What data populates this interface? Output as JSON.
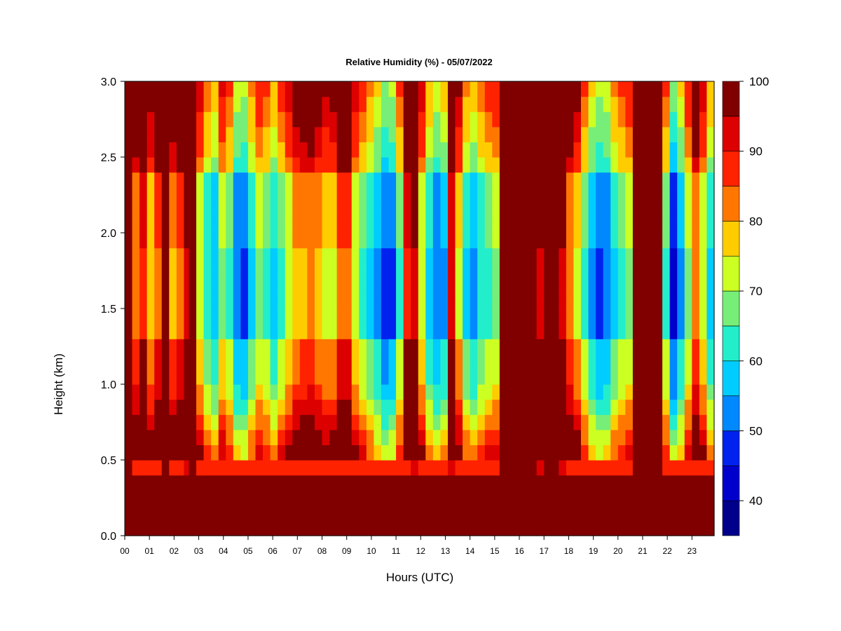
{
  "chart_data": {
    "type": "heatmap",
    "title": "Relative Humidity (%) - 05/07/2022",
    "xlabel": "Hours (UTC)",
    "ylabel": "Height (km)",
    "x_ticks": [
      "00",
      "01",
      "02",
      "03",
      "04",
      "05",
      "06",
      "07",
      "08",
      "09",
      "10",
      "11",
      "12",
      "13",
      "14",
      "15",
      "16",
      "17",
      "18",
      "19",
      "20",
      "21",
      "22",
      "23"
    ],
    "xlim": [
      0,
      23.9
    ],
    "y_ticks": [
      "0.0",
      "0.5",
      "1.0",
      "1.5",
      "2.0",
      "2.5",
      "3.0"
    ],
    "ylim": [
      0,
      3.0
    ],
    "grid": false,
    "colorbar": {
      "ticks": [
        "40",
        "50",
        "60",
        "70",
        "80",
        "90",
        "100"
      ],
      "range": [
        35,
        100
      ],
      "levels": [
        {
          "from": 35,
          "to": 40,
          "color": "#00008b"
        },
        {
          "from": 40,
          "to": 45,
          "color": "#0000cd"
        },
        {
          "from": 45,
          "to": 50,
          "color": "#0022ee"
        },
        {
          "from": 50,
          "to": 55,
          "color": "#0088ff"
        },
        {
          "from": 55,
          "to": 60,
          "color": "#00ccff"
        },
        {
          "from": 60,
          "to": 65,
          "color": "#22eecc"
        },
        {
          "from": 65,
          "to": 70,
          "color": "#77ee77"
        },
        {
          "from": 70,
          "to": 75,
          "color": "#ccff22"
        },
        {
          "from": 75,
          "to": 80,
          "color": "#ffcc00"
        },
        {
          "from": 80,
          "to": 85,
          "color": "#ff7700"
        },
        {
          "from": 85,
          "to": 90,
          "color": "#ff2200"
        },
        {
          "from": 90,
          "to": 95,
          "color": "#dd0000"
        },
        {
          "from": 95,
          "to": 100,
          "color": "#800000"
        }
      ]
    },
    "profiles_note_hours": [
      0.0,
      0.3,
      0.6,
      0.9,
      1.2,
      1.5,
      1.8,
      2.1,
      2.4,
      2.6,
      2.9,
      3.2,
      3.5,
      3.8,
      4.1,
      4.4,
      4.7,
      5.0,
      5.3,
      5.6,
      5.9,
      6.2,
      6.5,
      6.8,
      7.1,
      7.4,
      7.7,
      8.0,
      8.3,
      8.6,
      8.9,
      9.2,
      9.5,
      9.8,
      10.1,
      10.4,
      10.7,
      11.0,
      11.3,
      11.6,
      11.9,
      12.2,
      12.5,
      12.8,
      13.1,
      13.4,
      13.7,
      14.0,
      14.3,
      14.6,
      14.9,
      15.2,
      15.5,
      15.8,
      16.1,
      16.4,
      16.7,
      17.0,
      17.3,
      17.6,
      17.9,
      18.2,
      18.5,
      18.8,
      19.1,
      19.4,
      19.7,
      20.0,
      20.3,
      20.6,
      20.9,
      21.2,
      21.5,
      21.8,
      22.1,
      22.4,
      22.7,
      23.0,
      23.3,
      23.6,
      23.9
    ],
    "column_min_rh": [
      95,
      80,
      88,
      75,
      82,
      95,
      78,
      84,
      92,
      97,
      70,
      60,
      55,
      68,
      62,
      50,
      48,
      58,
      66,
      62,
      56,
      64,
      70,
      76,
      78,
      80,
      76,
      72,
      74,
      82,
      84,
      70,
      64,
      58,
      52,
      46,
      48,
      62,
      88,
      92,
      70,
      56,
      50,
      54,
      90,
      72,
      58,
      54,
      60,
      64,
      66,
      96,
      98,
      98,
      98,
      96,
      94,
      96,
      98,
      92,
      80,
      74,
      62,
      52,
      48,
      50,
      58,
      62,
      66,
      98,
      98,
      98,
      96,
      62,
      44,
      52,
      66,
      80,
      70,
      56,
      60
    ],
    "row_heights_km": [
      0.0,
      0.1,
      0.2,
      0.3,
      0.4,
      0.45,
      0.5,
      0.6,
      0.7,
      0.8,
      0.9,
      1.0,
      1.1,
      1.2,
      1.3,
      1.4,
      1.5,
      1.6,
      1.7,
      1.8,
      1.9,
      2.0,
      2.1,
      2.2,
      2.3,
      2.4,
      2.5,
      2.6,
      2.7,
      2.8,
      2.9,
      3.0
    ]
  }
}
